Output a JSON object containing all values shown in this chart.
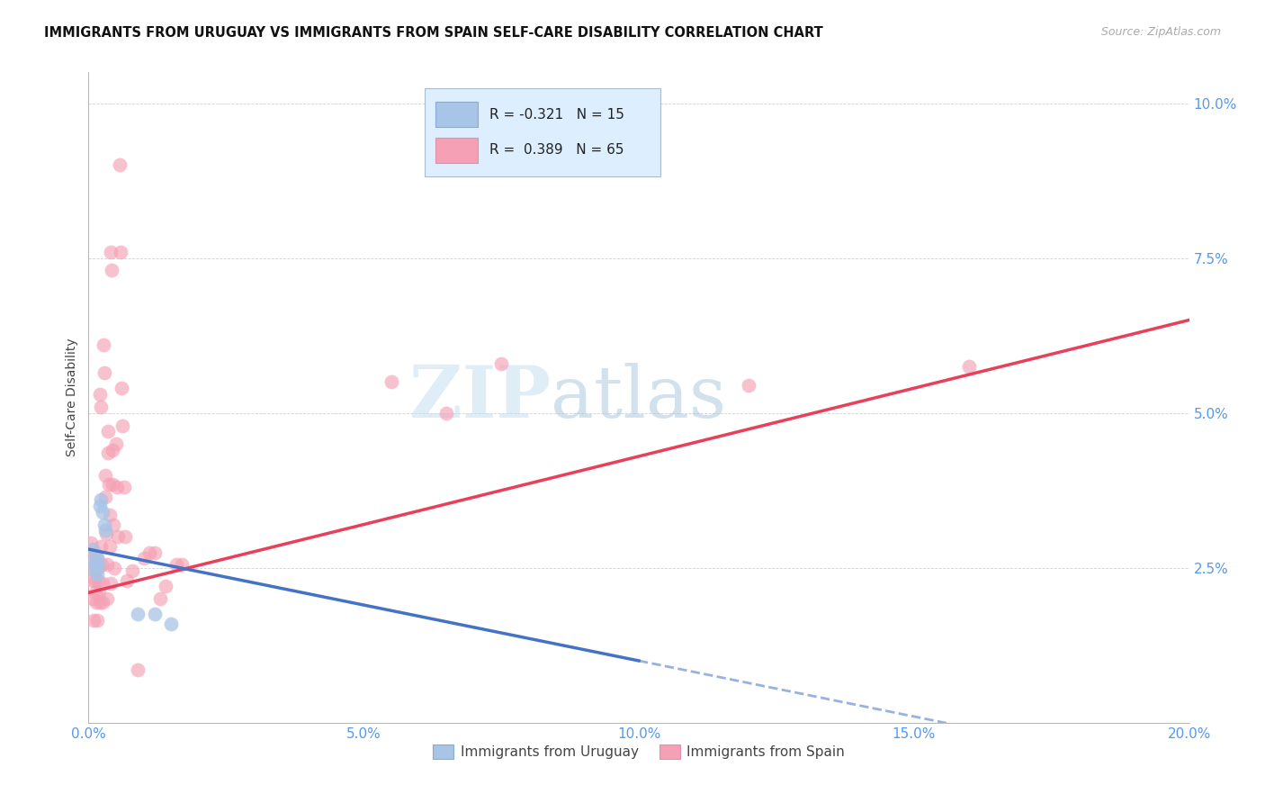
{
  "title": "IMMIGRANTS FROM URUGUAY VS IMMIGRANTS FROM SPAIN SELF-CARE DISABILITY CORRELATION CHART",
  "source": "Source: ZipAtlas.com",
  "xlabel_label": "Immigrants from Uruguay",
  "ylabel_label": "Self-Care Disability",
  "xlim": [
    0.0,
    0.2
  ],
  "ylim": [
    0.0,
    0.105
  ],
  "xticks": [
    0.0,
    0.05,
    0.1,
    0.15,
    0.2
  ],
  "xtick_labels": [
    "0.0%",
    "5.0%",
    "10.0%",
    "15.0%",
    "20.0%"
  ],
  "yticks": [
    0.025,
    0.05,
    0.075,
    0.1
  ],
  "ytick_labels": [
    "2.5%",
    "5.0%",
    "7.5%",
    "10.0%"
  ],
  "uruguay_R": -0.321,
  "uruguay_N": 15,
  "spain_R": 0.389,
  "spain_N": 65,
  "uruguay_color": "#a8c4e6",
  "spain_color": "#f5a0b5",
  "uruguay_line_color": "#4472c4",
  "spain_line_color": "#e8405a",
  "watermark_zip": "ZIP",
  "watermark_atlas": "atlas",
  "legend_box_facecolor": "#ddeeff",
  "legend_box_edgecolor": "#aabbcc",
  "uruguay_scatter": [
    [
      0.0008,
      0.028
    ],
    [
      0.001,
      0.026
    ],
    [
      0.0012,
      0.0245
    ],
    [
      0.0013,
      0.0255
    ],
    [
      0.0015,
      0.0265
    ],
    [
      0.0016,
      0.024
    ],
    [
      0.0018,
      0.0255
    ],
    [
      0.002,
      0.035
    ],
    [
      0.0022,
      0.036
    ],
    [
      0.0025,
      0.034
    ],
    [
      0.0028,
      0.032
    ],
    [
      0.003,
      0.031
    ],
    [
      0.009,
      0.0175
    ],
    [
      0.012,
      0.0175
    ],
    [
      0.015,
      0.016
    ]
  ],
  "spain_scatter": [
    [
      0.0005,
      0.029
    ],
    [
      0.0006,
      0.0265
    ],
    [
      0.0007,
      0.023
    ],
    [
      0.0008,
      0.02
    ],
    [
      0.0009,
      0.0165
    ],
    [
      0.001,
      0.0275
    ],
    [
      0.0011,
      0.0245
    ],
    [
      0.0012,
      0.023
    ],
    [
      0.0013,
      0.021
    ],
    [
      0.0014,
      0.0195
    ],
    [
      0.0015,
      0.0165
    ],
    [
      0.0016,
      0.0265
    ],
    [
      0.0017,
      0.025
    ],
    [
      0.0018,
      0.023
    ],
    [
      0.0019,
      0.021
    ],
    [
      0.002,
      0.0195
    ],
    [
      0.0021,
      0.053
    ],
    [
      0.0022,
      0.051
    ],
    [
      0.0023,
      0.0285
    ],
    [
      0.0024,
      0.0255
    ],
    [
      0.0025,
      0.0225
    ],
    [
      0.0026,
      0.0195
    ],
    [
      0.0027,
      0.061
    ],
    [
      0.0028,
      0.0565
    ],
    [
      0.003,
      0.04
    ],
    [
      0.0031,
      0.0365
    ],
    [
      0.0032,
      0.0305
    ],
    [
      0.0033,
      0.0255
    ],
    [
      0.0034,
      0.02
    ],
    [
      0.0035,
      0.047
    ],
    [
      0.0036,
      0.0435
    ],
    [
      0.0037,
      0.0385
    ],
    [
      0.0038,
      0.0335
    ],
    [
      0.0039,
      0.0285
    ],
    [
      0.004,
      0.0225
    ],
    [
      0.0041,
      0.076
    ],
    [
      0.0042,
      0.073
    ],
    [
      0.0043,
      0.044
    ],
    [
      0.0044,
      0.0385
    ],
    [
      0.0045,
      0.032
    ],
    [
      0.0046,
      0.025
    ],
    [
      0.005,
      0.045
    ],
    [
      0.0052,
      0.038
    ],
    [
      0.0054,
      0.03
    ],
    [
      0.0056,
      0.09
    ],
    [
      0.0058,
      0.076
    ],
    [
      0.006,
      0.054
    ],
    [
      0.0062,
      0.048
    ],
    [
      0.0065,
      0.038
    ],
    [
      0.0067,
      0.03
    ],
    [
      0.007,
      0.023
    ],
    [
      0.008,
      0.0245
    ],
    [
      0.009,
      0.0085
    ],
    [
      0.01,
      0.0265
    ],
    [
      0.011,
      0.0275
    ],
    [
      0.012,
      0.0275
    ],
    [
      0.013,
      0.02
    ],
    [
      0.014,
      0.022
    ],
    [
      0.016,
      0.0255
    ],
    [
      0.017,
      0.0255
    ],
    [
      0.055,
      0.055
    ],
    [
      0.065,
      0.05
    ],
    [
      0.075,
      0.058
    ],
    [
      0.12,
      0.0545
    ],
    [
      0.16,
      0.0575
    ]
  ]
}
